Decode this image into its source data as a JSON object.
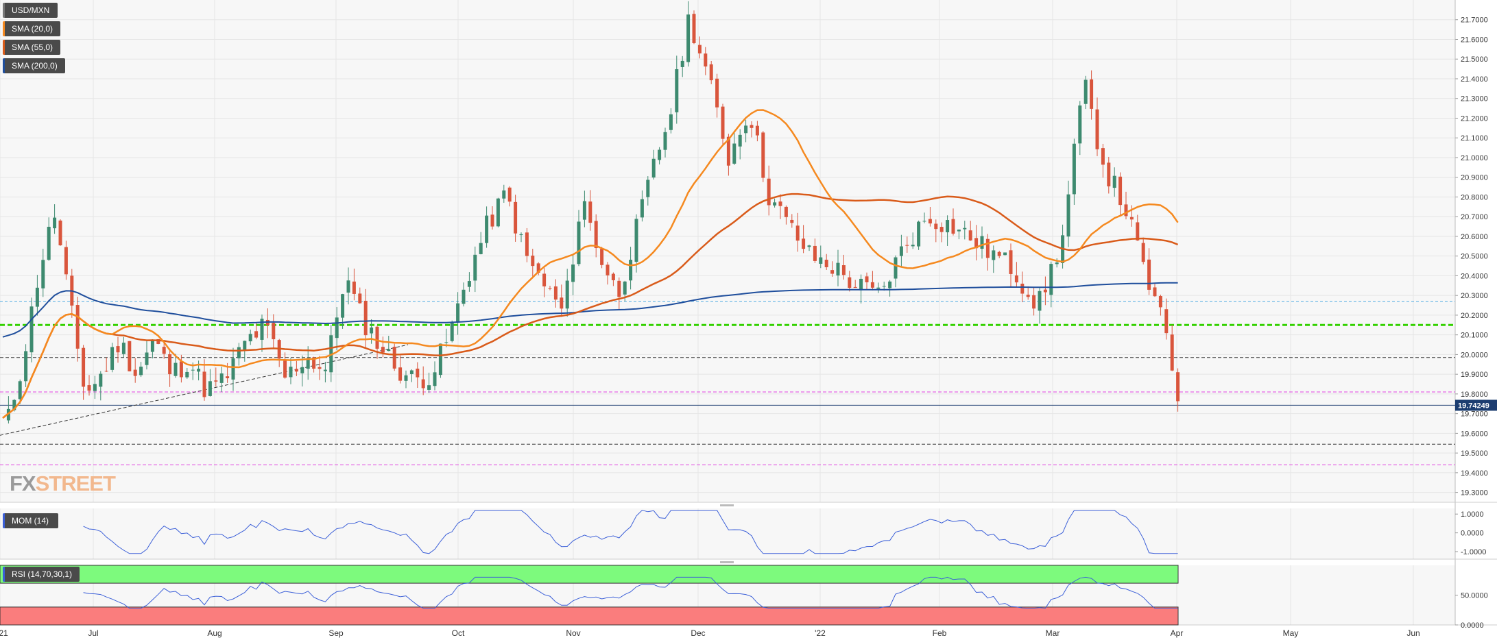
{
  "colors": {
    "up": "#3d8a6f",
    "down": "#d9553c",
    "sma20": "#f5891f",
    "sma55": "#d95b1a",
    "sma200": "#1f4e9c",
    "mom": "#3b5fd8",
    "rsi": "#3b5fd8",
    "rsi_overbought": "#7dfa7d",
    "rsi_oversold": "#fa7d7d",
    "level_cyan": "#4aa8e0",
    "level_green": "#34d100",
    "level_black": "#333333",
    "level_magenta": "#e040e0",
    "last_price_bg": "#1c3d70"
  },
  "legend": {
    "symbol": "USD/MXN",
    "sma20": "SMA (20,0)",
    "sma55": "SMA (55,0)",
    "sma200": "SMA (200,0)",
    "mom": "MOM (14)",
    "rsi": "RSI (14,70,30,1)"
  },
  "watermark": {
    "fx": "FX",
    "street": "STREET"
  },
  "last_price": "19.74249",
  "chart_data": [
    {
      "type": "candlestick",
      "symbol": "USD/MXN",
      "timeframe": "daily",
      "ylim": [
        19.25,
        21.8
      ],
      "y_ticks": [
        "21.7000",
        "21.6000",
        "21.5000",
        "21.4000",
        "21.3000",
        "21.2000",
        "21.1000",
        "21.0000",
        "20.9000",
        "20.8000",
        "20.7000",
        "20.6000",
        "20.5000",
        "20.4000",
        "20.3000",
        "20.2000",
        "20.1000",
        "20.0000",
        "19.9000",
        "19.8000",
        "19.7000",
        "19.6000",
        "19.5000",
        "19.4000",
        "19.3000"
      ],
      "x_ticks": [
        "'21",
        "Jul",
        "Aug",
        "Sep",
        "Oct",
        "Nov",
        "Dec",
        "'22",
        "Feb",
        "Mar",
        "Apr",
        "May",
        "Jun"
      ],
      "horizontal_levels": [
        {
          "value": 20.27,
          "style": "cyan-dashed"
        },
        {
          "value": 20.15,
          "style": "green-dashed-thick"
        },
        {
          "value": 19.985,
          "style": "black-dashed"
        },
        {
          "value": 19.81,
          "style": "magenta-dashed"
        },
        {
          "value": 19.74249,
          "style": "last-price"
        },
        {
          "value": 19.545,
          "style": "black-dashed"
        },
        {
          "value": 19.44,
          "style": "magenta-dashed"
        }
      ],
      "trendline": {
        "from": [
          "'21",
          19.59
        ],
        "to": [
          "Sep",
          20.05
        ]
      },
      "close_path": [
        [
          "'21",
          19.66
        ],
        [
          "'21",
          19.98
        ],
        [
          "'21",
          20.42
        ],
        [
          "'21",
          20.72
        ],
        [
          "'21",
          20.25
        ],
        [
          "'21",
          19.8
        ],
        [
          "Jul",
          19.9
        ],
        [
          "Jul",
          20.07
        ],
        [
          "Jul",
          19.9
        ],
        [
          "Jul",
          20.08
        ],
        [
          "Jul",
          19.9
        ],
        [
          "Jul",
          19.97
        ],
        [
          "Jul",
          19.82
        ],
        [
          "Aug",
          19.87
        ],
        [
          "Aug",
          20.06
        ],
        [
          "Aug",
          20.15
        ],
        [
          "Aug",
          19.88
        ],
        [
          "Aug",
          19.99
        ],
        [
          "Aug",
          19.92
        ],
        [
          "Sep",
          20.4
        ],
        [
          "Sep",
          20.18
        ],
        [
          "Sep",
          20.05
        ],
        [
          "Sep",
          19.93
        ],
        [
          "Sep",
          19.87
        ],
        [
          "Sep",
          19.9
        ],
        [
          "Sep",
          20.1
        ],
        [
          "Oct",
          20.4
        ],
        [
          "Oct",
          20.65
        ],
        [
          "Oct",
          20.82
        ],
        [
          "Oct",
          20.5
        ],
        [
          "Oct",
          20.35
        ],
        [
          "Oct",
          20.21
        ],
        [
          "Nov",
          20.8
        ],
        [
          "Nov",
          20.5
        ],
        [
          "Nov",
          20.3
        ],
        [
          "Nov",
          20.62
        ],
        [
          "Nov",
          20.95
        ],
        [
          "Nov",
          21.25
        ],
        [
          "Nov",
          21.72
        ],
        [
          "Dec",
          21.4
        ],
        [
          "Dec",
          21.0
        ],
        [
          "Dec",
          21.25
        ],
        [
          "Dec",
          20.8
        ],
        [
          "Dec",
          20.65
        ],
        [
          "Dec",
          20.5
        ],
        [
          "'22",
          20.45
        ],
        [
          "'22",
          20.35
        ],
        [
          "'22",
          20.3
        ],
        [
          "'22",
          20.55
        ],
        [
          "'22",
          20.7
        ],
        [
          "Feb",
          20.65
        ],
        [
          "Feb",
          20.55
        ],
        [
          "Feb",
          20.45
        ],
        [
          "Feb",
          20.25
        ],
        [
          "Mar",
          20.6
        ],
        [
          "Mar",
          21.38
        ],
        [
          "Mar",
          20.95
        ],
        [
          "Mar",
          20.75
        ],
        [
          "Mar",
          20.4
        ],
        [
          "Mar",
          20.1
        ],
        [
          "Apr",
          19.74
        ]
      ],
      "sma": [
        {
          "name": "SMA (20,0)",
          "start": 19.88,
          "peak": 21.2,
          "end": 20.41
        },
        {
          "name": "SMA (55,0)",
          "start": 20.08,
          "peak": 20.8,
          "end": 20.5
        },
        {
          "name": "SMA (200,0)",
          "start": 20.47,
          "low": 20.13,
          "end": 20.41
        }
      ]
    },
    {
      "type": "line",
      "name": "MOM (14)",
      "y_ticks": [
        "1.0000",
        "0.0000",
        "-1.0000"
      ],
      "ylim": [
        -1.4,
        1.3
      ]
    },
    {
      "type": "line",
      "name": "RSI (14,70,30,1)",
      "y_ticks": [
        "50.0000",
        "0.0000"
      ],
      "ylim": [
        0,
        100
      ],
      "overbought": 70,
      "oversold": 30
    }
  ]
}
